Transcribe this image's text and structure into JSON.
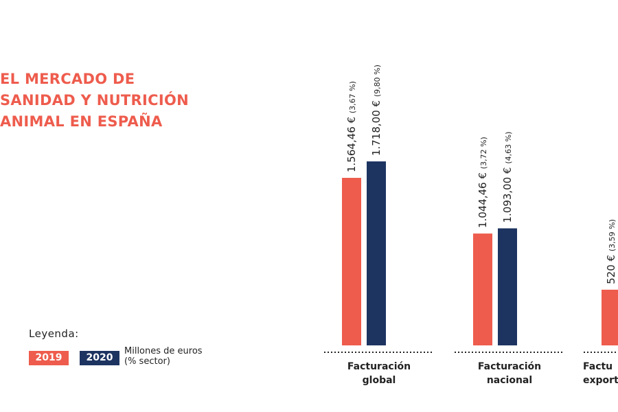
{
  "title_lines": [
    "EL MERCADO DE",
    "SANIDAD Y NUTRICIÓN",
    "ANIMAL EN ESPAÑA"
  ],
  "legend": {
    "title": "Leyenda:",
    "items": [
      {
        "label": "2019",
        "color": "#ee5c4d"
      },
      {
        "label": "2020",
        "color": "#1d3461"
      }
    ],
    "note_line1": "Millones de euros",
    "note_line2": "(% sector)"
  },
  "chart_data": {
    "type": "bar",
    "categories": [
      [
        "Facturación",
        "global"
      ],
      [
        "Facturación",
        "nacional"
      ],
      [
        "Factu",
        "export"
      ]
    ],
    "series": [
      {
        "name": "2019",
        "color": "#ee5c4d",
        "values": [
          1564.46,
          1044.46,
          520
        ],
        "labels": [
          "1.564,46 €",
          "1.044,46 €",
          "520 €"
        ],
        "pct_labels": [
          "(3,67 %)",
          "(3,72 %)",
          "(3,59 %)"
        ]
      },
      {
        "name": "2020",
        "color": "#1d3461",
        "values": [
          1718.0,
          1093.0,
          null
        ],
        "labels": [
          "1.718,00 €",
          "1.093,00 €",
          null
        ],
        "pct_labels": [
          "(9,80 %)",
          "(4,63 %)",
          null
        ]
      }
    ],
    "ylim": [
      0,
      2000
    ]
  }
}
